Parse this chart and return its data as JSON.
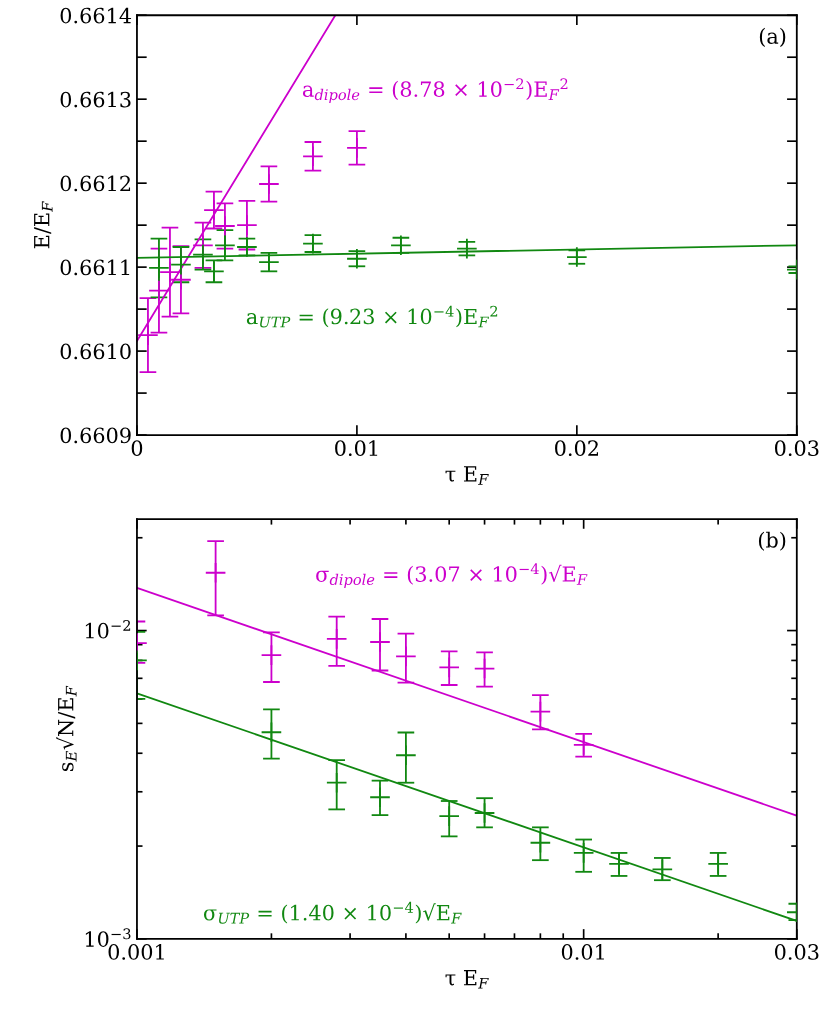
{
  "chart_data": [
    {
      "type": "scatter",
      "xlabel": "τ E$_{F}$",
      "ylabel": "E/E$_{F}$",
      "xlim": [
        0,
        0.03
      ],
      "ylim": [
        0.6609,
        0.6614
      ],
      "xticks": [
        0,
        0.01,
        0.02,
        0.03
      ],
      "yticks": [
        {
          "value": 0.6609,
          "label": "0.6609"
        },
        {
          "value": 0.66095,
          "label": null
        },
        {
          "value": 0.661,
          "label": "0.6610"
        },
        {
          "value": 0.66105,
          "label": null
        },
        {
          "value": 0.6611,
          "label": "0.6611"
        },
        {
          "value": 0.66115,
          "label": null
        },
        {
          "value": 0.6612,
          "label": "0.6612"
        },
        {
          "value": 0.66125,
          "label": null
        },
        {
          "value": 0.6613,
          "label": "0.6613"
        },
        {
          "value": 0.66135,
          "label": null
        },
        {
          "value": 0.6614,
          "label": "0.6614"
        }
      ],
      "grid": false,
      "legend": false,
      "series": [
        {
          "marker": "cross",
          "color": "#cc00cc",
          "x": [
            0.0005,
            0.001,
            0.0015,
            0.002,
            0.003,
            0.0035,
            0.004,
            0.005,
            0.006,
            0.008,
            0.01
          ],
          "values": [
            0.661019,
            0.661072,
            0.661094,
            0.661085,
            0.661126,
            0.661168,
            0.661149,
            0.66115,
            0.661199,
            0.661232,
            0.661242
          ],
          "errors": [
            4.4e-05,
            5e-05,
            5.3e-05,
            4e-05,
            2.7e-05,
            2.2e-05,
            2.7e-05,
            2.9e-05,
            2.1e-05,
            1.7e-05,
            2e-05
          ]
        },
        {
          "marker": "cross",
          "color": "#118811",
          "x": [
            0.001,
            0.002,
            0.003,
            0.0035,
            0.004,
            0.005,
            0.006,
            0.008,
            0.01,
            0.012,
            0.015,
            0.02,
            0.03
          ],
          "values": [
            0.661099,
            0.661103,
            0.661115,
            0.661095,
            0.661126,
            0.661124,
            0.661106,
            0.661128,
            0.66111,
            0.661126,
            0.661122,
            0.661112,
            0.661097
          ],
          "errors": [
            3.5e-05,
            2.1e-05,
            1.8e-05,
            1.3e-05,
            1.8e-05,
            1e-05,
            1.1e-05,
            1e-05,
            9e-06,
            9e-06,
            8e-06,
            8e-06,
            4e-06
          ]
        },
        {
          "type": "line",
          "color": "#cc00cc",
          "x": [
            0,
            0.00902
          ],
          "values": [
            0.661012,
            0.6614
          ]
        },
        {
          "type": "line",
          "color": "#118811",
          "x": [
            0,
            0.03
          ],
          "values": [
            0.661111,
            0.661126
          ]
        }
      ],
      "annotations": [
        "a$_{dipole}$ = (8.78 × 10$^{−2}$)E$_{F}$$^{2}$",
        "a$_{UTP}$ = (9.23 × 10$^{−4}$)E$_{F}$$^{2}$",
        "(a)"
      ]
    },
    {
      "type": "scatter",
      "xlabel": "τ E$_{F}$",
      "ylabel": "s$_{E}$√N/E$_{F}$",
      "log": "xy",
      "xlim": [
        0.001,
        0.03
      ],
      "ylim": [
        0.001,
        0.023
      ],
      "xticks": [
        0.001,
        0.01,
        0.03
      ],
      "yticks": [
        {
          "value": 0.001,
          "label": "10$^{−3}$"
        },
        {
          "value": 0.01,
          "label": "10$^{−2}$"
        }
      ],
      "grid": false,
      "legend": false,
      "series": [
        {
          "marker": "cross",
          "color": "#cc00cc",
          "x": [
            0.001,
            0.0015,
            0.002,
            0.0028,
            0.0035,
            0.004,
            0.005,
            0.006,
            0.008,
            0.01
          ],
          "values": [
            0.00911,
            0.0154,
            0.00832,
            0.0094,
            0.00918,
            0.00825,
            0.0076,
            0.00753,
            0.00546,
            0.00426
          ],
          "errors": [
            [
              0.00786,
              0.0107
            ],
            [
              0.0112,
              0.0195
            ],
            [
              0.00681,
              0.00987
            ],
            [
              0.00768,
              0.0111
            ],
            [
              0.00742,
              0.0109
            ],
            [
              0.00678,
              0.00978
            ],
            [
              0.00666,
              0.00856
            ],
            [
              0.00658,
              0.0085
            ],
            [
              0.00478,
              0.00617
            ],
            [
              0.0039,
              0.00462
            ]
          ]
        },
        {
          "marker": "cross",
          "color": "#118811",
          "x": [
            0.001,
            0.002,
            0.0028,
            0.0035,
            0.004,
            0.005,
            0.006,
            0.008,
            0.01,
            0.012,
            0.015,
            0.02,
            0.03
          ],
          "values": [
            0.008,
            0.00468,
            0.00321,
            0.00288,
            0.00394,
            0.0025,
            0.00256,
            0.00205,
            0.0019,
            0.00175,
            0.00168,
            0.00175,
            0.00122
          ],
          "errors": [
            [
              0.006,
              0.0099
            ],
            [
              0.00384,
              0.00555
            ],
            [
              0.00263,
              0.0038
            ],
            [
              0.00252,
              0.00326
            ],
            [
              0.00321,
              0.00467
            ],
            [
              0.00215,
              0.0028
            ],
            [
              0.0023,
              0.00286
            ],
            [
              0.0018,
              0.0023
            ],
            [
              0.00165,
              0.0021
            ],
            [
              0.0016,
              0.0019
            ],
            [
              0.00155,
              0.00183
            ],
            [
              0.0016,
              0.0019
            ],
            [
              0.00115,
              0.0013
            ]
          ]
        },
        {
          "type": "line",
          "color": "#cc00cc",
          "x": [
            0.001,
            0.03
          ],
          "values": [
            0.01375,
            0.00251
          ]
        },
        {
          "type": "line",
          "color": "#118811",
          "x": [
            0.001,
            0.03
          ],
          "values": [
            0.00626,
            0.001143
          ]
        }
      ],
      "annotations": [
        "σ$_{dipole}$ = (3.07 × 10$^{−4}$)√E$_{F}$",
        "σ$_{UTP}$ = (1.40 × 10$^{−4}$)√E$_{F}$",
        "(b)"
      ]
    }
  ]
}
